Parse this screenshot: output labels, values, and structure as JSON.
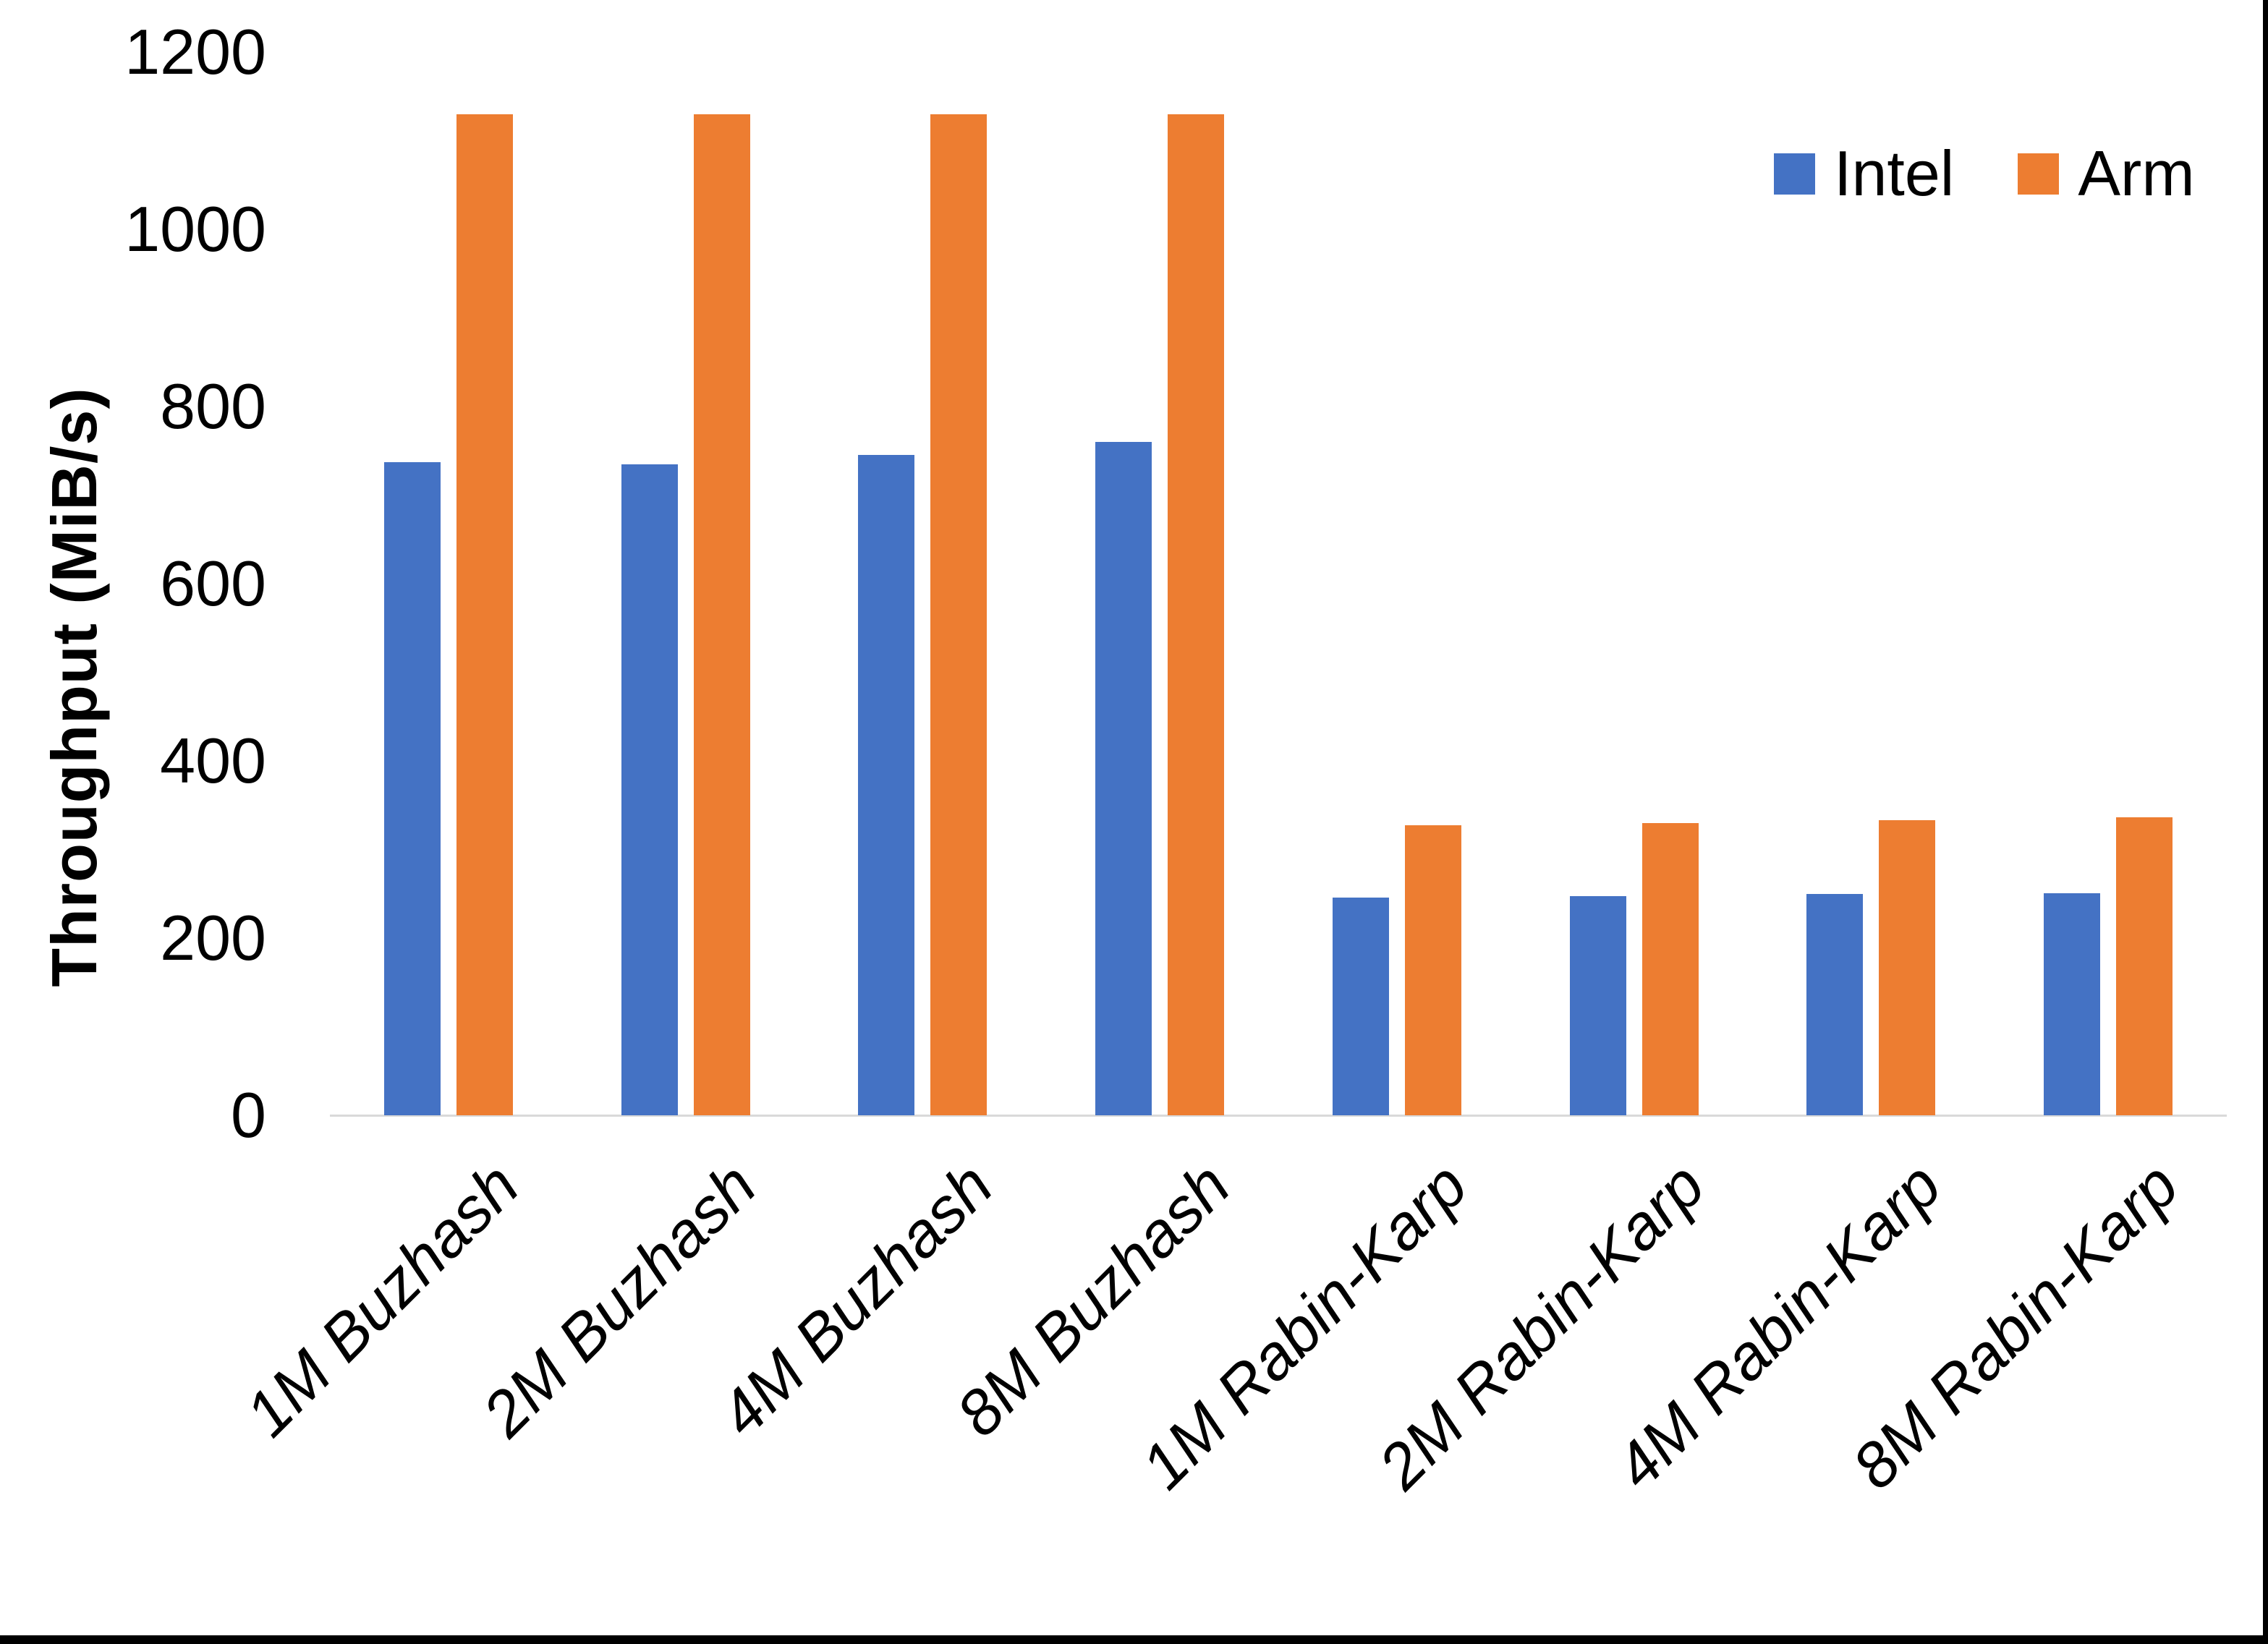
{
  "chart_data": {
    "type": "bar",
    "title": "",
    "ylabel": "Throughput (MiB/s)",
    "ylim": [
      0,
      1200
    ],
    "yticks": [
      0,
      200,
      400,
      600,
      800,
      1000,
      1200
    ],
    "grid": false,
    "legend_position": "top-right",
    "categories": [
      "1M Buzhash",
      "2M Buzhash",
      "4M Buzhash",
      "8M Buzhash",
      "1M Rabin-Karp",
      "2M Rabin-Karp",
      "4M Rabin-Karp",
      "8M Rabin-Karp"
    ],
    "series": [
      {
        "name": "Intel",
        "color": "#4472C4",
        "values": [
          737,
          735,
          745,
          760,
          246,
          247,
          250,
          251
        ]
      },
      {
        "name": "Arm",
        "color": "#ED7D31",
        "values": [
          1130,
          1130,
          1130,
          1130,
          327,
          330,
          333,
          336
        ]
      }
    ]
  },
  "colors": {
    "axis_line": "#D9D9D9",
    "text": "#000000",
    "background": "#FFFFFF",
    "frame_border": "#000000"
  }
}
